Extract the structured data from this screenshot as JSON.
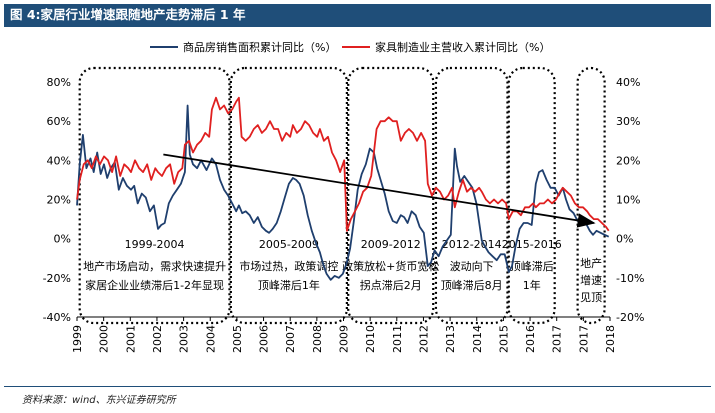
{
  "figure_title": "图 4:家居行业增速跟随地产走势滞后 1 年",
  "source": "资料来源：wind、东兴证券研究所",
  "colors": {
    "housing": "#1f3f6e",
    "furniture": "#e02020",
    "title_bg": "#1f4e79",
    "arrow": "#000000"
  },
  "chart_data": {
    "type": "line",
    "title": "",
    "x_ticks": [
      "1999",
      "2000",
      "2001",
      "2002",
      "2003",
      "2004",
      "2005",
      "2006",
      "2007",
      "2008",
      "2009",
      "2010",
      "2011",
      "2012",
      "2013",
      "2014",
      "2015",
      "2016",
      "2017",
      "2017",
      "2018"
    ],
    "x_range": [
      1999.0,
      2018.75
    ],
    "y_left": {
      "ticks": [
        "80%",
        "60%",
        "40%",
        "20%",
        "0%",
        "-20%",
        "-40%"
      ],
      "range": [
        -40,
        80
      ]
    },
    "y_right": {
      "ticks": [
        "40%",
        "30%",
        "20%",
        "10%",
        "0%",
        "-10%",
        "-20%"
      ],
      "range": [
        -20,
        40
      ]
    },
    "legend_position": "top",
    "series": [
      {
        "name": "商品房销售面积累计同比（%）",
        "axis": "left",
        "points": [
          [
            1999.0,
            17
          ],
          [
            1999.1,
            38
          ],
          [
            1999.22,
            53
          ],
          [
            1999.35,
            36
          ],
          [
            1999.5,
            41
          ],
          [
            1999.62,
            34
          ],
          [
            1999.75,
            44
          ],
          [
            1999.88,
            33
          ],
          [
            2000.0,
            38
          ],
          [
            2000.12,
            31
          ],
          [
            2000.25,
            36
          ],
          [
            2000.4,
            39
          ],
          [
            2000.55,
            25
          ],
          [
            2000.7,
            31
          ],
          [
            2000.85,
            27
          ],
          [
            2001.0,
            25
          ],
          [
            2001.12,
            27
          ],
          [
            2001.25,
            18
          ],
          [
            2001.4,
            23
          ],
          [
            2001.55,
            21
          ],
          [
            2001.7,
            14
          ],
          [
            2001.85,
            17
          ],
          [
            2002.0,
            5
          ],
          [
            2002.12,
            7
          ],
          [
            2002.25,
            8
          ],
          [
            2002.4,
            18
          ],
          [
            2002.55,
            22
          ],
          [
            2002.7,
            25
          ],
          [
            2002.85,
            28
          ],
          [
            2003.0,
            34
          ],
          [
            2003.1,
            68
          ],
          [
            2003.18,
            43
          ],
          [
            2003.3,
            38
          ],
          [
            2003.45,
            36
          ],
          [
            2003.6,
            40
          ],
          [
            2003.8,
            35
          ],
          [
            2004.0,
            41
          ],
          [
            2004.15,
            38
          ],
          [
            2004.3,
            30
          ],
          [
            2004.45,
            25
          ],
          [
            2004.6,
            22
          ],
          [
            2004.75,
            18
          ],
          [
            2004.9,
            14
          ],
          [
            2005.0,
            17
          ],
          [
            2005.12,
            13
          ],
          [
            2005.25,
            14
          ],
          [
            2005.4,
            12
          ],
          [
            2005.55,
            8
          ],
          [
            2005.7,
            11
          ],
          [
            2005.85,
            6
          ],
          [
            2006.0,
            4
          ],
          [
            2006.12,
            3
          ],
          [
            2006.25,
            5
          ],
          [
            2006.4,
            8
          ],
          [
            2006.55,
            14
          ],
          [
            2006.7,
            21
          ],
          [
            2006.85,
            28
          ],
          [
            2007.0,
            31
          ],
          [
            2007.12,
            30
          ],
          [
            2007.25,
            28
          ],
          [
            2007.4,
            22
          ],
          [
            2007.55,
            12
          ],
          [
            2007.7,
            4
          ],
          [
            2007.85,
            -2
          ],
          [
            2008.0,
            -7
          ],
          [
            2008.12,
            -13
          ],
          [
            2008.25,
            -18
          ],
          [
            2008.4,
            -21
          ],
          [
            2008.55,
            -19
          ],
          [
            2008.7,
            -20
          ],
          [
            2008.85,
            -18
          ],
          [
            2009.0,
            -12
          ],
          [
            2009.12,
            -5
          ],
          [
            2009.25,
            8
          ],
          [
            2009.4,
            25
          ],
          [
            2009.55,
            33
          ],
          [
            2009.7,
            38
          ],
          [
            2009.85,
            46
          ],
          [
            2010.0,
            44
          ],
          [
            2010.12,
            36
          ],
          [
            2010.25,
            30
          ],
          [
            2010.4,
            23
          ],
          [
            2010.55,
            14
          ],
          [
            2010.7,
            9
          ],
          [
            2010.85,
            8
          ],
          [
            2011.0,
            12
          ],
          [
            2011.12,
            11
          ],
          [
            2011.25,
            8
          ],
          [
            2011.4,
            14
          ],
          [
            2011.55,
            12
          ],
          [
            2011.7,
            6
          ],
          [
            2011.85,
            3
          ],
          [
            2012.0,
            -14
          ],
          [
            2012.12,
            -12
          ],
          [
            2012.25,
            -6
          ],
          [
            2012.4,
            -9
          ],
          [
            2012.55,
            -4
          ],
          [
            2012.7,
            -1
          ],
          [
            2012.85,
            2
          ],
          [
            2013.0,
            46
          ],
          [
            2013.08,
            37
          ],
          [
            2013.2,
            29
          ],
          [
            2013.35,
            32
          ],
          [
            2013.5,
            29
          ],
          [
            2013.65,
            26
          ],
          [
            2013.8,
            18
          ],
          [
            2014.0,
            -1
          ],
          [
            2014.12,
            -4
          ],
          [
            2014.25,
            -7
          ],
          [
            2014.4,
            -9
          ],
          [
            2014.55,
            -11
          ],
          [
            2014.7,
            -8
          ],
          [
            2014.85,
            -8
          ],
          [
            2015.0,
            -17
          ],
          [
            2015.12,
            -14
          ],
          [
            2015.25,
            -4
          ],
          [
            2015.4,
            5
          ],
          [
            2015.55,
            8
          ],
          [
            2015.7,
            8
          ],
          [
            2015.85,
            7
          ],
          [
            2016.0,
            28
          ],
          [
            2016.12,
            34
          ],
          [
            2016.25,
            35
          ],
          [
            2016.4,
            30
          ],
          [
            2016.55,
            26
          ],
          [
            2016.7,
            26
          ],
          [
            2016.85,
            22
          ],
          [
            2017.0,
            26
          ],
          [
            2017.12,
            20
          ],
          [
            2017.25,
            15
          ],
          [
            2017.4,
            13
          ],
          [
            2017.55,
            9
          ],
          [
            2017.7,
            8
          ],
          [
            2017.85,
            8
          ],
          [
            2018.0,
            4
          ],
          [
            2018.12,
            2
          ],
          [
            2018.25,
            4
          ],
          [
            2018.4,
            3
          ],
          [
            2018.55,
            2
          ],
          [
            2018.7,
            1
          ]
        ]
      },
      {
        "name": "家具制造业主营收入累计同比（%）",
        "axis": "right",
        "points": [
          [
            1999.0,
            10
          ],
          [
            1999.1,
            15
          ],
          [
            1999.25,
            19
          ],
          [
            1999.4,
            20
          ],
          [
            1999.55,
            18
          ],
          [
            1999.7,
            21
          ],
          [
            1999.85,
            19
          ],
          [
            2000.0,
            21
          ],
          [
            2000.15,
            20
          ],
          [
            2000.3,
            17
          ],
          [
            2000.45,
            21
          ],
          [
            2000.6,
            16
          ],
          [
            2000.75,
            19
          ],
          [
            2000.9,
            18
          ],
          [
            2001.0,
            17
          ],
          [
            2001.15,
            20
          ],
          [
            2001.3,
            18
          ],
          [
            2001.45,
            17
          ],
          [
            2001.6,
            19
          ],
          [
            2001.75,
            15
          ],
          [
            2001.9,
            18
          ],
          [
            2002.0,
            17
          ],
          [
            2002.15,
            16
          ],
          [
            2002.3,
            18
          ],
          [
            2002.45,
            19
          ],
          [
            2002.6,
            14
          ],
          [
            2002.75,
            17
          ],
          [
            2002.9,
            18
          ],
          [
            2003.0,
            24
          ],
          [
            2003.15,
            25
          ],
          [
            2003.3,
            22
          ],
          [
            2003.45,
            24
          ],
          [
            2003.6,
            25
          ],
          [
            2003.75,
            27
          ],
          [
            2003.9,
            26
          ],
          [
            2004.0,
            33
          ],
          [
            2004.15,
            36
          ],
          [
            2004.3,
            33
          ],
          [
            2004.45,
            34
          ],
          [
            2004.6,
            32
          ],
          [
            2004.75,
            33
          ],
          [
            2004.9,
            35
          ],
          [
            2005.0,
            36
          ],
          [
            2005.1,
            26
          ],
          [
            2005.25,
            25
          ],
          [
            2005.4,
            26
          ],
          [
            2005.55,
            28
          ],
          [
            2005.7,
            29
          ],
          [
            2005.85,
            27
          ],
          [
            2006.0,
            28
          ],
          [
            2006.15,
            30
          ],
          [
            2006.3,
            28
          ],
          [
            2006.45,
            28
          ],
          [
            2006.6,
            25
          ],
          [
            2006.75,
            27
          ],
          [
            2006.9,
            26
          ],
          [
            2007.0,
            29
          ],
          [
            2007.15,
            27
          ],
          [
            2007.3,
            28
          ],
          [
            2007.45,
            30
          ],
          [
            2007.6,
            29
          ],
          [
            2007.75,
            27
          ],
          [
            2007.9,
            26
          ],
          [
            2008.0,
            28
          ],
          [
            2008.15,
            25
          ],
          [
            2008.3,
            26
          ],
          [
            2008.45,
            22
          ],
          [
            2008.6,
            20
          ],
          [
            2008.75,
            17
          ],
          [
            2008.9,
            20
          ],
          [
            2009.0,
            2
          ],
          [
            2009.15,
            5
          ],
          [
            2009.3,
            7
          ],
          [
            2009.45,
            9
          ],
          [
            2009.6,
            12
          ],
          [
            2009.75,
            13
          ],
          [
            2009.9,
            16
          ],
          [
            2010.0,
            22
          ],
          [
            2010.1,
            28
          ],
          [
            2010.25,
            30
          ],
          [
            2010.4,
            30
          ],
          [
            2010.55,
            31
          ],
          [
            2010.7,
            30
          ],
          [
            2010.85,
            30
          ],
          [
            2011.0,
            25
          ],
          [
            2011.15,
            27
          ],
          [
            2011.3,
            28
          ],
          [
            2011.45,
            27
          ],
          [
            2011.6,
            25
          ],
          [
            2011.75,
            27
          ],
          [
            2011.9,
            25
          ],
          [
            2012.0,
            14
          ],
          [
            2012.15,
            11
          ],
          [
            2012.3,
            13
          ],
          [
            2012.45,
            12
          ],
          [
            2012.6,
            10
          ],
          [
            2012.75,
            11
          ],
          [
            2012.9,
            13
          ],
          [
            2013.0,
            8
          ],
          [
            2013.15,
            12
          ],
          [
            2013.3,
            15
          ],
          [
            2013.45,
            12
          ],
          [
            2013.6,
            13
          ],
          [
            2013.75,
            12
          ],
          [
            2013.9,
            13
          ],
          [
            2014.0,
            12
          ],
          [
            2014.15,
            10
          ],
          [
            2014.3,
            9
          ],
          [
            2014.45,
            10
          ],
          [
            2014.6,
            9
          ],
          [
            2014.75,
            10
          ],
          [
            2014.9,
            9
          ],
          [
            2015.0,
            5
          ],
          [
            2015.15,
            7
          ],
          [
            2015.3,
            7
          ],
          [
            2015.45,
            6
          ],
          [
            2015.6,
            8
          ],
          [
            2015.75,
            8
          ],
          [
            2015.9,
            9
          ],
          [
            2016.0,
            8
          ],
          [
            2016.15,
            9
          ],
          [
            2016.3,
            9
          ],
          [
            2016.45,
            10
          ],
          [
            2016.6,
            9
          ],
          [
            2016.75,
            10
          ],
          [
            2016.9,
            12
          ],
          [
            2017.0,
            13
          ],
          [
            2017.15,
            12
          ],
          [
            2017.3,
            11
          ],
          [
            2017.45,
            9
          ],
          [
            2017.6,
            8
          ],
          [
            2017.75,
            8
          ],
          [
            2017.9,
            7
          ],
          [
            2018.0,
            6
          ],
          [
            2018.15,
            5
          ],
          [
            2018.3,
            5
          ],
          [
            2018.45,
            4
          ],
          [
            2018.6,
            3
          ],
          [
            2018.7,
            2
          ]
        ]
      }
    ],
    "arrow": {
      "from": [
        2002.2,
        43
      ],
      "to": [
        2018.15,
        8
      ]
    },
    "annotations": [
      {
        "name": "period-1999-2004",
        "x_range": [
          1999.1,
          2004.65
        ],
        "title": "1999-2004",
        "lines": [
          "地产市场启动，需求快速提升",
          "家居企业业绩滞后1-2年显现"
        ]
      },
      {
        "name": "period-2005-2009",
        "x_range": [
          2004.7,
          2009.0
        ],
        "title": "2005-2009",
        "lines": [
          "市场过热，政策调控",
          "顶峰滞后1年"
        ]
      },
      {
        "name": "period-2009-2012",
        "x_range": [
          2009.05,
          2012.2
        ],
        "title": "2009-2012",
        "lines": [
          "政策放松+货币宽松",
          "拐点滞后2月"
        ]
      },
      {
        "name": "period-2012-2014",
        "x_range": [
          2012.3,
          2014.95
        ],
        "title": "2012-2014",
        "lines": [
          "波动向下",
          "顶峰滞后8月"
        ]
      },
      {
        "name": "period-2015-2016",
        "x_range": [
          2015.0,
          2016.7
        ],
        "title": "2015-2016",
        "lines": [
          "顶峰滞后",
          "1年"
        ]
      },
      {
        "name": "period-2017-2018",
        "x_range": [
          2017.55,
          2018.55
        ],
        "title": "",
        "lines": [
          "地产",
          "增速",
          "见顶"
        ]
      }
    ]
  }
}
